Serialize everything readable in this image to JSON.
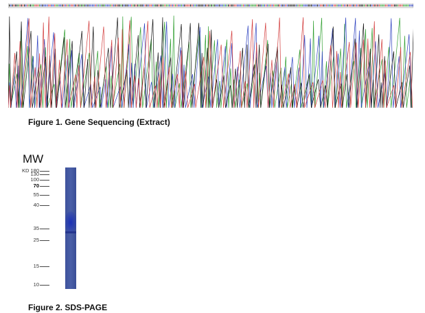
{
  "figure1": {
    "caption": "Figure 1. Gene Sequencing (Extract)",
    "trace_colors": {
      "A": "#2e9e2e",
      "C": "#2b3fbf",
      "G": "#111111",
      "T": "#d23a3a"
    }
  },
  "figure2": {
    "caption": "Figure 2. SDS-PAGE",
    "mw_label": "MW",
    "unit_label": "KD",
    "markers": [
      {
        "label": "180",
        "bold": false
      },
      {
        "label": "130",
        "bold": false
      },
      {
        "label": "100",
        "bold": false
      },
      {
        "label": "70",
        "bold": true
      },
      {
        "label": "55",
        "bold": false
      },
      {
        "label": "40",
        "bold": false
      },
      {
        "label": "35",
        "bold": false
      },
      {
        "label": "25",
        "bold": false
      },
      {
        "label": "15",
        "bold": false
      },
      {
        "label": "10",
        "bold": false
      }
    ],
    "lane_color": "#4a5fa8",
    "band_color": "#1a2fb5"
  }
}
